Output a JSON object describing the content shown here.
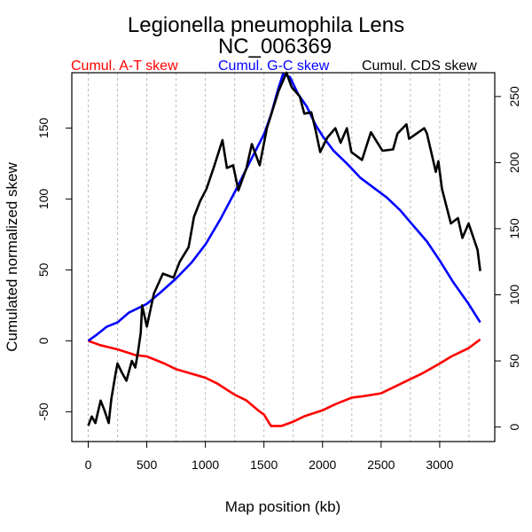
{
  "chart_data": {
    "type": "line",
    "title": "Legionella pneumophila Lens",
    "subtitle": "NC_006369",
    "xlabel": "Map position (kb)",
    "ylabel": "Cumulated normalized skew",
    "xlim": [
      -140,
      3470
    ],
    "ylim_left": [
      -71,
      189
    ],
    "ylim_right": [
      -11,
      268
    ],
    "x_ticks": [
      0,
      500,
      1000,
      1500,
      2000,
      2500,
      3000
    ],
    "x_tick_labels": [
      "0",
      "500",
      "1000",
      "1500",
      "2000",
      "2500",
      "3000"
    ],
    "x_gridlines": [
      0,
      250,
      500,
      750,
      1000,
      1250,
      1500,
      1750,
      2000,
      2250,
      2500,
      2750,
      3000,
      3250
    ],
    "y_left_ticks": [
      -50,
      0,
      50,
      100,
      150
    ],
    "y_left_tick_labels": [
      "-50",
      "0",
      "50",
      "100",
      "150"
    ],
    "y_right_ticks": [
      0,
      50,
      100,
      150,
      200,
      250
    ],
    "y_right_tick_labels": [
      "0",
      "50",
      "100",
      "150",
      "200",
      "250"
    ],
    "grid": "vertical dotted",
    "legend_placement": "top",
    "series": [
      {
        "name": "Cumul. A-T skew",
        "color": "#ff0000",
        "axis": "left",
        "points": [
          [
            0,
            0
          ],
          [
            100,
            -3
          ],
          [
            250,
            -6
          ],
          [
            400,
            -10
          ],
          [
            500,
            -11
          ],
          [
            650,
            -16
          ],
          [
            750,
            -20
          ],
          [
            1000,
            -26
          ],
          [
            1100,
            -30
          ],
          [
            1250,
            -38
          ],
          [
            1350,
            -42
          ],
          [
            1450,
            -49
          ],
          [
            1500,
            -52
          ],
          [
            1560,
            -60
          ],
          [
            1650,
            -60
          ],
          [
            1750,
            -57
          ],
          [
            1850,
            -53
          ],
          [
            2000,
            -49
          ],
          [
            2100,
            -45
          ],
          [
            2250,
            -40
          ],
          [
            2350,
            -39
          ],
          [
            2500,
            -37
          ],
          [
            2600,
            -33
          ],
          [
            2750,
            -27
          ],
          [
            2850,
            -23
          ],
          [
            3000,
            -16
          ],
          [
            3100,
            -11
          ],
          [
            3250,
            -5
          ],
          [
            3346,
            1
          ]
        ]
      },
      {
        "name": "Cumul. G-C skew",
        "color": "#0000ff",
        "axis": "left",
        "points": [
          [
            0,
            0
          ],
          [
            83,
            5
          ],
          [
            159,
            10
          ],
          [
            250,
            13
          ],
          [
            349,
            20
          ],
          [
            500,
            26
          ],
          [
            615,
            34
          ],
          [
            751,
            44
          ],
          [
            880,
            55
          ],
          [
            1001,
            68
          ],
          [
            1130,
            86
          ],
          [
            1252,
            105
          ],
          [
            1373,
            125
          ],
          [
            1502,
            146
          ],
          [
            1563,
            160
          ],
          [
            1616,
            176
          ],
          [
            1662,
            188
          ],
          [
            1722,
            186
          ],
          [
            1791,
            174
          ],
          [
            1866,
            165
          ],
          [
            1942,
            152
          ],
          [
            2003,
            144
          ],
          [
            2094,
            134
          ],
          [
            2208,
            125
          ],
          [
            2322,
            115
          ],
          [
            2435,
            108
          ],
          [
            2549,
            101
          ],
          [
            2663,
            92
          ],
          [
            2777,
            81
          ],
          [
            2891,
            70
          ],
          [
            2997,
            57
          ],
          [
            3118,
            41
          ],
          [
            3247,
            26
          ],
          [
            3346,
            13
          ]
        ]
      },
      {
        "name": "Cumul. CDS skew",
        "color": "#000000",
        "axis": "right",
        "points": [
          [
            0,
            1
          ],
          [
            30,
            8
          ],
          [
            61,
            3
          ],
          [
            106,
            20
          ],
          [
            137,
            13
          ],
          [
            175,
            3
          ],
          [
            197,
            21
          ],
          [
            235,
            41
          ],
          [
            250,
            48
          ],
          [
            288,
            41
          ],
          [
            326,
            35
          ],
          [
            372,
            50
          ],
          [
            402,
            45
          ],
          [
            425,
            57
          ],
          [
            448,
            71
          ],
          [
            460,
            92
          ],
          [
            500,
            76
          ],
          [
            561,
            101
          ],
          [
            637,
            116
          ],
          [
            728,
            113
          ],
          [
            781,
            125
          ],
          [
            857,
            136
          ],
          [
            903,
            159
          ],
          [
            956,
            171
          ],
          [
            1009,
            180
          ],
          [
            1070,
            196
          ],
          [
            1146,
            217
          ],
          [
            1184,
            196
          ],
          [
            1237,
            198
          ],
          [
            1282,
            179
          ],
          [
            1351,
            196
          ],
          [
            1396,
            214
          ],
          [
            1464,
            198
          ],
          [
            1525,
            226
          ],
          [
            1624,
            254
          ],
          [
            1692,
            268
          ],
          [
            1737,
            257
          ],
          [
            1806,
            250
          ],
          [
            1844,
            237
          ],
          [
            1904,
            238
          ],
          [
            1942,
            224
          ],
          [
            1980,
            208
          ],
          [
            2041,
            219
          ],
          [
            2109,
            226
          ],
          [
            2155,
            215
          ],
          [
            2208,
            226
          ],
          [
            2246,
            208
          ],
          [
            2337,
            202
          ],
          [
            2413,
            223
          ],
          [
            2511,
            209
          ],
          [
            2602,
            210
          ],
          [
            2640,
            222
          ],
          [
            2716,
            229
          ],
          [
            2739,
            218
          ],
          [
            2868,
            226
          ],
          [
            2891,
            222
          ],
          [
            2967,
            193
          ],
          [
            2989,
            201
          ],
          [
            3020,
            180
          ],
          [
            3095,
            154
          ],
          [
            3156,
            158
          ],
          [
            3194,
            143
          ],
          [
            3247,
            154
          ],
          [
            3323,
            134
          ],
          [
            3346,
            118
          ]
        ]
      }
    ]
  }
}
